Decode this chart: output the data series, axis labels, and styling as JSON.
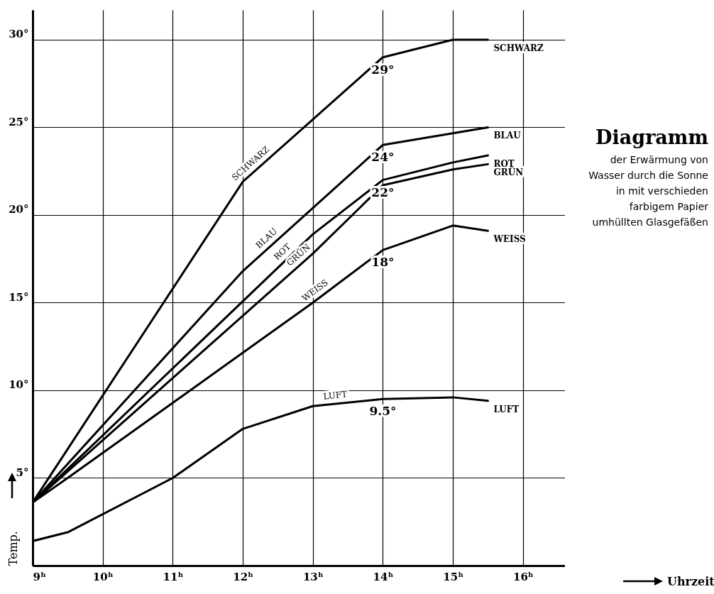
{
  "chart_data": {
    "type": "line",
    "title": "Diagramm",
    "subtitle": "der Erwärmung von Wasser durch die Sonne in mit verschieden farbigem Papier umhüllten Glasgefäßen",
    "ylabel": "Temp.",
    "xlim": [
      9,
      16.6
    ],
    "ylim": [
      0,
      31.7
    ],
    "xticks": [
      {
        "value": 9,
        "label": "9ʰ"
      },
      {
        "value": 10,
        "label": "10ʰ"
      },
      {
        "value": 11,
        "label": "11ʰ"
      },
      {
        "value": 12,
        "label": "12ʰ"
      },
      {
        "value": 13,
        "label": "13ʰ"
      },
      {
        "value": 14,
        "label": "14ʰ"
      },
      {
        "value": 15,
        "label": "15ʰ"
      },
      {
        "value": 16,
        "label": "16ʰ"
      }
    ],
    "yticks": [
      {
        "value": 5,
        "label": "5°"
      },
      {
        "value": 10,
        "label": "10°"
      },
      {
        "value": 15,
        "label": "15°"
      },
      {
        "value": 20,
        "label": "20°"
      },
      {
        "value": 25,
        "label": "25°"
      },
      {
        "value": 30,
        "label": "30°"
      }
    ],
    "grid": true,
    "legend": false,
    "marker": "none",
    "line_style": "solid",
    "series": [
      {
        "name": "SCHWARZ",
        "color": "#000000",
        "x": [
          9,
          12,
          14,
          15,
          15.5
        ],
        "values": [
          3.6,
          21.9,
          29,
          30,
          30
        ],
        "value_labels": [
          null,
          null,
          "29°",
          null,
          null
        ]
      },
      {
        "name": "BLAU",
        "color": "#000000",
        "x": [
          9,
          12,
          14,
          15.5
        ],
        "values": [
          3.6,
          16.8,
          24,
          25
        ],
        "value_labels": [
          null,
          null,
          "24°",
          null
        ]
      },
      {
        "name": "ROT",
        "color": "#000000",
        "x": [
          9,
          13,
          14,
          15,
          15.5
        ],
        "values": [
          3.6,
          18.9,
          22,
          23,
          23.4
        ],
        "value_labels": [
          null,
          null,
          "22°",
          null,
          null
        ]
      },
      {
        "name": "GRÜN",
        "color": "#000000",
        "x": [
          9,
          13,
          14,
          15,
          15.5
        ],
        "values": [
          3.6,
          17.8,
          21.7,
          22.6,
          22.9
        ]
      },
      {
        "name": "WEISS",
        "color": "#000000",
        "x": [
          9,
          9.5,
          13,
          14,
          15,
          15.5
        ],
        "values": [
          3.6,
          5,
          15,
          18,
          19.4,
          19.1
        ],
        "value_labels": [
          null,
          null,
          null,
          "18°",
          null,
          null
        ]
      },
      {
        "name": "LUFT",
        "color": "#000000",
        "x": [
          9,
          9.5,
          11,
          12,
          13,
          14,
          15,
          15.5
        ],
        "values": [
          1.4,
          1.9,
          5,
          7.8,
          9.1,
          9.5,
          9.6,
          9.4
        ],
        "value_labels": [
          null,
          null,
          null,
          null,
          null,
          "9.5°",
          null,
          null
        ]
      }
    ],
    "annotations": [
      "Uhrzeit"
    ]
  }
}
